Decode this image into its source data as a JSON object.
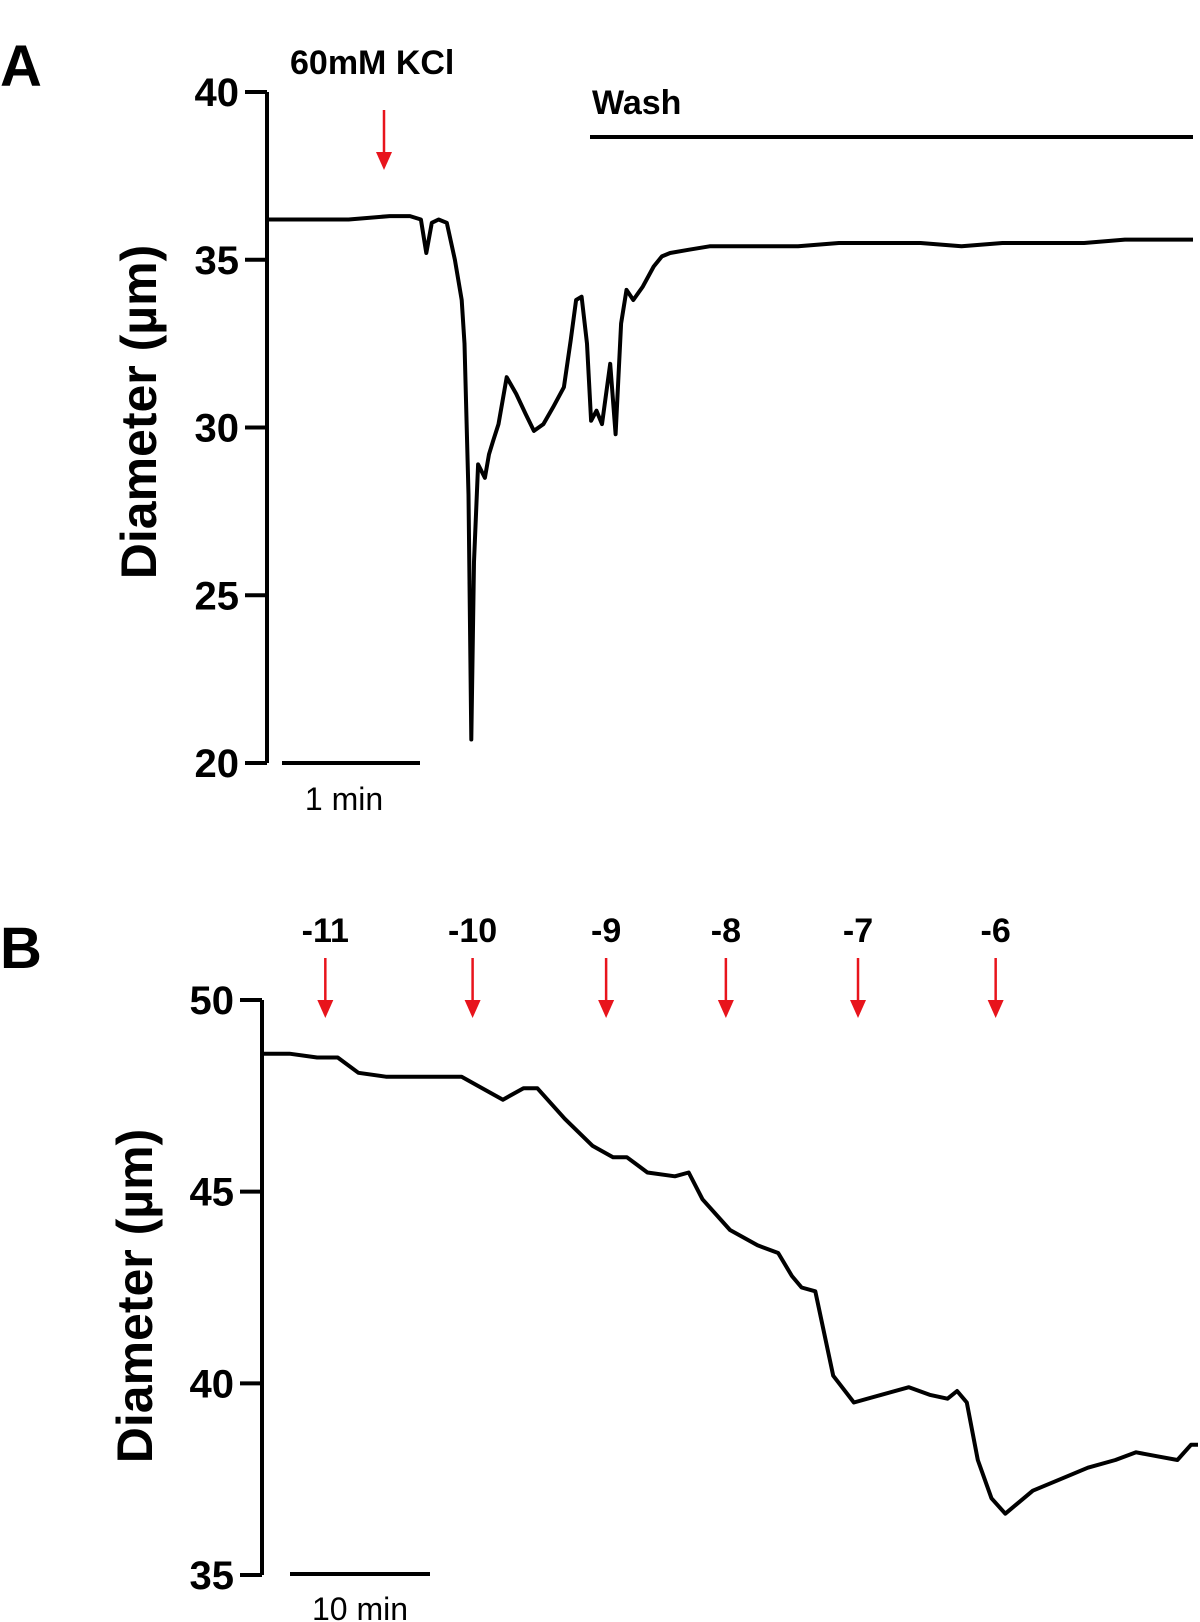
{
  "chart_data": [
    {
      "type": "line",
      "panel": "A",
      "ylabel": "Diameter (µm)",
      "ylim": [
        20,
        40
      ],
      "yticks": [
        20,
        25,
        30,
        35,
        40
      ],
      "scale_bar": "1 min",
      "x_unit": "min",
      "xlim": [
        0,
        6.8
      ],
      "annotations": [
        {
          "label": "60mM KCl",
          "type": "arrow",
          "x": 0.82,
          "color": "#e8141c"
        },
        {
          "label": "Wash",
          "type": "bar",
          "x_start": 2.31,
          "x_end": 6.8
        }
      ],
      "series": [
        {
          "x": [
            0,
            0.3,
            0.6,
            0.9,
            1.05,
            1.13,
            1.17,
            1.21,
            1.26,
            1.32,
            1.38,
            1.43,
            1.45,
            1.48,
            1.5,
            1.52,
            1.55,
            1.6,
            1.63,
            1.66,
            1.7,
            1.76,
            1.83,
            1.9,
            1.96,
            2.03,
            2.1,
            2.18,
            2.23,
            2.27,
            2.31,
            2.35,
            2.38,
            2.42,
            2.46,
            2.52,
            2.56,
            2.6,
            2.64,
            2.69,
            2.76,
            2.84,
            2.9,
            2.96,
            3.1,
            3.25,
            3.4,
            3.6,
            3.9,
            4.2,
            4.5,
            4.8,
            5.1,
            5.4,
            5.7,
            6.0,
            6.3,
            6.6,
            6.8
          ],
          "y": [
            36.2,
            36.2,
            36.2,
            36.3,
            36.3,
            36.2,
            35.2,
            36.1,
            36.2,
            36.1,
            35.0,
            33.8,
            32.5,
            28.0,
            20.7,
            26.0,
            28.9,
            28.5,
            29.2,
            29.6,
            30.1,
            31.5,
            31.0,
            30.4,
            29.9,
            30.1,
            30.6,
            31.2,
            32.6,
            33.8,
            33.9,
            32.5,
            30.2,
            30.5,
            30.1,
            31.9,
            29.8,
            33.1,
            34.1,
            33.8,
            34.2,
            34.8,
            35.1,
            35.2,
            35.3,
            35.4,
            35.4,
            35.4,
            35.4,
            35.5,
            35.5,
            35.5,
            35.4,
            35.5,
            35.5,
            35.5,
            35.6,
            35.6,
            35.6
          ]
        }
      ]
    },
    {
      "type": "line",
      "panel": "B",
      "ylabel": "Diameter (µm)",
      "ylim": [
        35,
        50
      ],
      "yticks": [
        35,
        40,
        45,
        50
      ],
      "scale_bar": "10 min",
      "x_unit": "min",
      "xlim": [
        0,
        68
      ],
      "annotations": [
        {
          "label": "-11",
          "type": "arrow",
          "x": 4.6,
          "color": "#e8141c"
        },
        {
          "label": "-10",
          "type": "arrow",
          "x": 15.3,
          "color": "#e8141c"
        },
        {
          "label": "-9",
          "type": "arrow",
          "x": 25.0,
          "color": "#e8141c"
        },
        {
          "label": "-8",
          "type": "arrow",
          "x": 33.7,
          "color": "#e8141c"
        },
        {
          "label": "-7",
          "type": "arrow",
          "x": 43.3,
          "color": "#e8141c"
        },
        {
          "label": "-6",
          "type": "arrow",
          "x": 53.3,
          "color": "#e8141c"
        }
      ],
      "series": [
        {
          "x": [
            0,
            2,
            4,
            5.5,
            7,
            9,
            11,
            13,
            14.5,
            16,
            17.5,
            19,
            20,
            22,
            24,
            25.5,
            26.5,
            28,
            30,
            31,
            32,
            34,
            36,
            37.5,
            38.5,
            39.2,
            40.2,
            41.5,
            43,
            45,
            47,
            48.5,
            49.8,
            50.5,
            51.2,
            52,
            53,
            54,
            56,
            58,
            60,
            62,
            63.5,
            65,
            66.5,
            67.5,
            68
          ],
          "y": [
            48.6,
            48.6,
            48.5,
            48.5,
            48.1,
            48.0,
            48.0,
            48.0,
            48.0,
            47.7,
            47.4,
            47.7,
            47.7,
            46.9,
            46.2,
            45.9,
            45.9,
            45.5,
            45.4,
            45.5,
            44.8,
            44.0,
            43.6,
            43.4,
            42.8,
            42.5,
            42.4,
            40.2,
            39.5,
            39.7,
            39.9,
            39.7,
            39.6,
            39.8,
            39.5,
            38.0,
            37.0,
            36.6,
            37.2,
            37.5,
            37.8,
            38.0,
            38.2,
            38.1,
            38.0,
            38.4,
            38.4
          ]
        }
      ]
    }
  ]
}
